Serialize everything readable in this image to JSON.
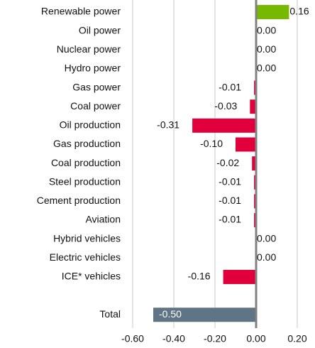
{
  "chart_data": {
    "type": "bar",
    "orientation": "horizontal",
    "categories": [
      "Renewable power",
      "Oil power",
      "Nuclear power",
      "Hydro power",
      "Gas power",
      "Coal power",
      "Oil production",
      "Gas production",
      "Coal production",
      "Steel production",
      "Cement production",
      "Aviation",
      "Hybrid vehicles",
      "Electric vehicles",
      "ICE* vehicles",
      null,
      "Total"
    ],
    "values": [
      0.16,
      0.0,
      0.0,
      0.0,
      -0.01,
      -0.03,
      -0.31,
      -0.1,
      -0.02,
      -0.01,
      -0.01,
      -0.01,
      0.0,
      0.0,
      -0.16,
      null,
      -0.5
    ],
    "value_labels": [
      "0.16",
      "0.00",
      "0.00",
      "0.00",
      "-0.01",
      "-0.03",
      "-0.31",
      "-0.10",
      "-0.02",
      "-0.01",
      "-0.01",
      "-0.01",
      "0.00",
      "0.00",
      "-0.16",
      null,
      "-0.50"
    ],
    "positive_color": "#76b900",
    "negative_color": "#e2003c",
    "total_color": "#5f7585",
    "xlim": [
      -0.6,
      0.2
    ],
    "xticks": [
      {
        "value": -0.6,
        "label": "-0.60"
      },
      {
        "value": -0.4,
        "label": "-0.40"
      },
      {
        "value": -0.2,
        "label": "-0.20"
      },
      {
        "value": 0,
        "label": "0.00"
      },
      {
        "value": 0.2,
        "label": "0.20"
      }
    ],
    "grid": true
  }
}
